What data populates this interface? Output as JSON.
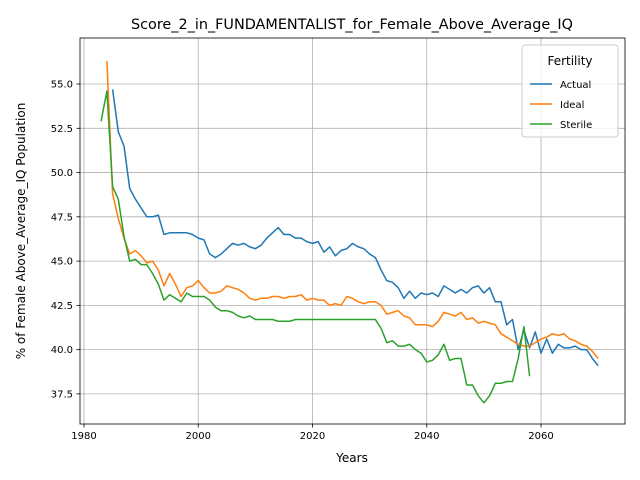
{
  "chart_data": {
    "type": "line",
    "title": "Score_2_in_FUNDAMENTALIST_for_Female_Above_Average_IQ",
    "xlabel": "Years",
    "ylabel": "% of Female Above_Average_IQ Population",
    "xlim": [
      1979.3,
      2074.7
    ],
    "ylim": [
      35.8,
      57.6
    ],
    "x_ticks": [
      1980,
      2000,
      2020,
      2040,
      2060
    ],
    "y_ticks": [
      37.5,
      40.0,
      42.5,
      45.0,
      47.5,
      50.0,
      52.5,
      55.0
    ],
    "x_tick_labels": [
      "1980",
      "2000",
      "2020",
      "2040",
      "2060"
    ],
    "y_tick_labels": [
      "37.5",
      "40.0",
      "42.5",
      "45.0",
      "47.5",
      "50.0",
      "52.5",
      "55.0"
    ],
    "grid": true,
    "legend": {
      "title": "Fertility",
      "placement": "top-right"
    },
    "series": [
      {
        "name": "Actual",
        "color": "#1f77b4",
        "x": [
          1985,
          1986,
          1987,
          1988,
          1989,
          1990,
          1991,
          1992,
          1993,
          1994,
          1995,
          1996,
          1997,
          1998,
          1999,
          2000,
          2001,
          2002,
          2003,
          2004,
          2005,
          2006,
          2007,
          2008,
          2009,
          2010,
          2011,
          2012,
          2013,
          2014,
          2015,
          2016,
          2017,
          2018,
          2019,
          2020,
          2021,
          2022,
          2023,
          2024,
          2025,
          2026,
          2027,
          2028,
          2029,
          2030,
          2031,
          2032,
          2033,
          2034,
          2035,
          2036,
          2037,
          2038,
          2039,
          2040,
          2041,
          2042,
          2043,
          2044,
          2045,
          2046,
          2047,
          2048,
          2049,
          2050,
          2051,
          2052,
          2053,
          2054,
          2055,
          2056,
          2057,
          2058,
          2059,
          2060,
          2061,
          2062,
          2063,
          2064,
          2065,
          2066,
          2067,
          2068,
          2069,
          2070
        ],
        "y": [
          54.7,
          52.3,
          51.5,
          49.1,
          48.5,
          48.0,
          47.5,
          47.5,
          47.6,
          46.5,
          46.6,
          46.6,
          46.6,
          46.6,
          46.5,
          46.3,
          46.2,
          45.4,
          45.2,
          45.4,
          45.7,
          46.0,
          45.9,
          46.0,
          45.8,
          45.7,
          45.9,
          46.3,
          46.6,
          46.9,
          46.5,
          46.5,
          46.3,
          46.3,
          46.1,
          46.0,
          46.1,
          45.5,
          45.8,
          45.3,
          45.6,
          45.7,
          46.0,
          45.8,
          45.7,
          45.4,
          45.2,
          44.5,
          43.9,
          43.8,
          43.5,
          42.9,
          43.3,
          42.9,
          43.2,
          43.1,
          43.2,
          43.0,
          43.6,
          43.4,
          43.2,
          43.4,
          43.2,
          43.5,
          43.6,
          43.2,
          43.5,
          42.7,
          42.7,
          41.4,
          41.7,
          40.0,
          41.1,
          40.1,
          41.0,
          39.8,
          40.6,
          39.8,
          40.3,
          40.1,
          40.1,
          40.2,
          40.0,
          40.0,
          39.5,
          39.1
        ]
      },
      {
        "name": "Ideal",
        "color": "#ff7f0e",
        "x": [
          1984,
          1985,
          1986,
          1987,
          1988,
          1989,
          1990,
          1991,
          1992,
          1993,
          1994,
          1995,
          1996,
          1997,
          1998,
          1999,
          2000,
          2001,
          2002,
          2003,
          2004,
          2005,
          2006,
          2007,
          2008,
          2009,
          2010,
          2011,
          2012,
          2013,
          2014,
          2015,
          2016,
          2017,
          2018,
          2019,
          2020,
          2021,
          2022,
          2023,
          2024,
          2025,
          2026,
          2027,
          2028,
          2029,
          2030,
          2031,
          2032,
          2033,
          2034,
          2035,
          2036,
          2037,
          2038,
          2039,
          2040,
          2041,
          2042,
          2043,
          2044,
          2045,
          2046,
          2047,
          2048,
          2049,
          2050,
          2051,
          2052,
          2053,
          2054,
          2055,
          2056,
          2057,
          2058,
          2059,
          2060,
          2061,
          2062,
          2063,
          2064,
          2065,
          2066,
          2067,
          2068,
          2069,
          2070
        ],
        "y": [
          56.3,
          48.8,
          47.4,
          46.3,
          45.4,
          45.6,
          45.3,
          44.9,
          45.0,
          44.5,
          43.6,
          44.3,
          43.7,
          43.0,
          43.5,
          43.6,
          43.9,
          43.5,
          43.2,
          43.2,
          43.3,
          43.6,
          43.5,
          43.4,
          43.2,
          42.9,
          42.8,
          42.9,
          42.9,
          43.0,
          43.0,
          42.9,
          43.0,
          43.0,
          43.1,
          42.8,
          42.9,
          42.8,
          42.8,
          42.5,
          42.6,
          42.5,
          43.0,
          42.9,
          42.7,
          42.6,
          42.7,
          42.7,
          42.5,
          42.0,
          42.1,
          42.2,
          41.9,
          41.8,
          41.4,
          41.4,
          41.4,
          41.3,
          41.6,
          42.1,
          42.0,
          41.9,
          42.1,
          41.7,
          41.8,
          41.5,
          41.6,
          41.5,
          41.4,
          40.9,
          40.7,
          40.5,
          40.3,
          40.2,
          40.2,
          40.4,
          40.6,
          40.7,
          40.9,
          40.8,
          40.9,
          40.6,
          40.5,
          40.3,
          40.2,
          39.9,
          39.5
        ]
      },
      {
        "name": "Sterile",
        "color": "#2ca02c",
        "x": [
          1983,
          1984,
          1985,
          1986,
          1987,
          1988,
          1989,
          1990,
          1991,
          1992,
          1993,
          1994,
          1995,
          1996,
          1997,
          1998,
          1999,
          2000,
          2001,
          2002,
          2003,
          2004,
          2005,
          2006,
          2007,
          2008,
          2009,
          2010,
          2011,
          2012,
          2013,
          2014,
          2015,
          2016,
          2017,
          2018,
          2019,
          2020,
          2021,
          2022,
          2023,
          2024,
          2025,
          2026,
          2027,
          2028,
          2029,
          2030,
          2031,
          2032,
          2033,
          2034,
          2035,
          2036,
          2037,
          2038,
          2039,
          2040,
          2041,
          2042,
          2043,
          2044,
          2045,
          2046,
          2047,
          2048,
          2049,
          2050,
          2051,
          2052,
          2053,
          2054,
          2055,
          2056,
          2057,
          2058
        ],
        "y": [
          52.9,
          54.6,
          49.2,
          48.5,
          46.4,
          45.0,
          45.1,
          44.8,
          44.8,
          44.3,
          43.7,
          42.8,
          43.1,
          42.9,
          42.7,
          43.2,
          43.0,
          43.0,
          43.0,
          42.8,
          42.4,
          42.2,
          42.2,
          42.1,
          41.9,
          41.8,
          41.9,
          41.7,
          41.7,
          41.7,
          41.7,
          41.6,
          41.6,
          41.6,
          41.7,
          41.7,
          41.7,
          41.7,
          41.7,
          41.7,
          41.7,
          41.7,
          41.7,
          41.7,
          41.7,
          41.7,
          41.7,
          41.7,
          41.7,
          41.2,
          40.4,
          40.5,
          40.2,
          40.2,
          40.3,
          40.0,
          39.8,
          39.3,
          39.4,
          39.7,
          40.3,
          39.4,
          39.5,
          39.5,
          38.0,
          38.0,
          37.4,
          37.0,
          37.4,
          38.1,
          38.1,
          38.2,
          38.2,
          39.5,
          41.3,
          38.5
        ]
      }
    ]
  }
}
